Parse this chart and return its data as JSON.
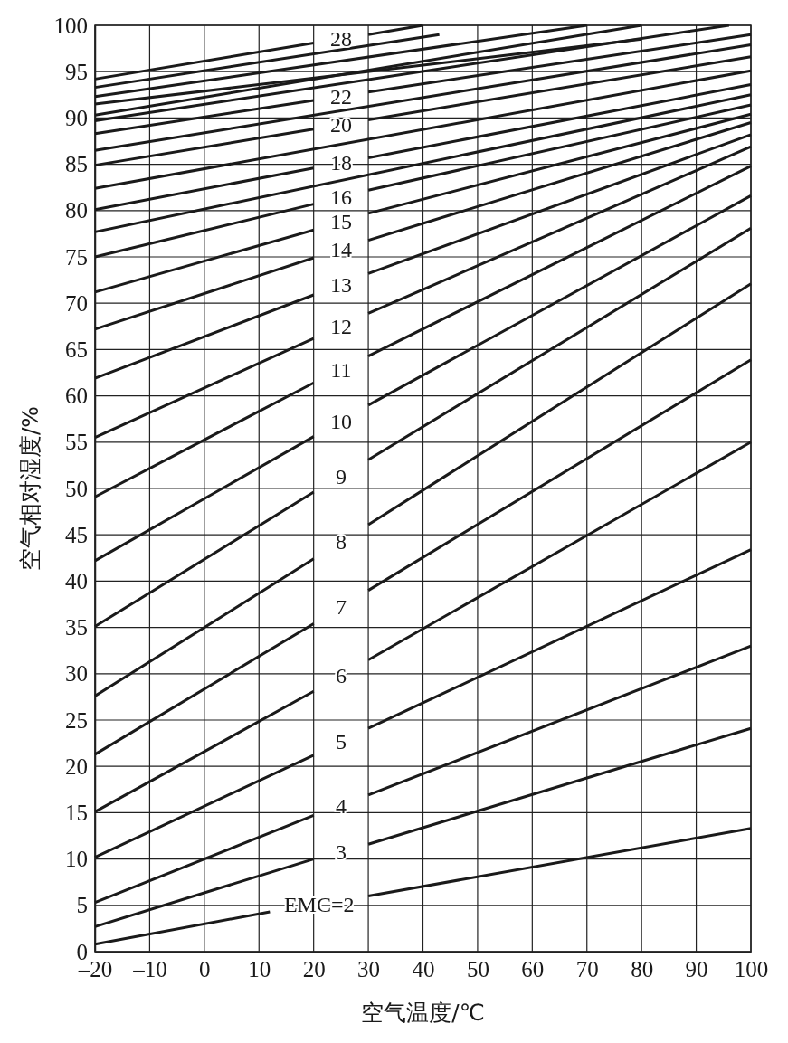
{
  "chart_data": {
    "type": "line",
    "xlabel": "空气温度/℃",
    "ylabel": "空气相对湿度/%",
    "xlim": [
      -20,
      100
    ],
    "ylim": [
      0,
      100
    ],
    "xticks": [
      {
        "value": -20,
        "label": "–20"
      },
      {
        "value": -10,
        "label": "–10"
      },
      0,
      10,
      20,
      30,
      40,
      50,
      60,
      70,
      80,
      90,
      100
    ],
    "yticks": [
      0,
      5,
      10,
      15,
      20,
      25,
      30,
      35,
      40,
      45,
      50,
      55,
      60,
      65,
      70,
      75,
      80,
      85,
      90,
      95,
      100
    ],
    "grid": true,
    "marker": "none",
    "line_style": "solid",
    "series": [
      {
        "name": "EMC=2",
        "color": "#1a1a1a",
        "x": [
          -20,
          12,
          21,
          30,
          100
        ],
        "values": [
          0.8,
          4.3,
          null,
          6.0,
          13.3
        ]
      },
      {
        "name": "3",
        "color": "#1a1a1a",
        "x": [
          -20,
          20,
          25,
          30,
          100
        ],
        "values": [
          2.7,
          10.0,
          null,
          11.6,
          24.1
        ]
      },
      {
        "name": "4",
        "color": "#1a1a1a",
        "x": [
          -20,
          20,
          25,
          30,
          100
        ],
        "values": [
          5.3,
          14.7,
          null,
          16.9,
          33.0
        ]
      },
      {
        "name": "5",
        "color": "#1a1a1a",
        "x": [
          -20,
          20,
          25,
          30,
          100
        ],
        "values": [
          10.2,
          21.2,
          null,
          24.1,
          43.4
        ]
      },
      {
        "name": "6",
        "color": "#1a1a1a",
        "x": [
          -20,
          20,
          25,
          30,
          100
        ],
        "values": [
          15.1,
          28.1,
          null,
          31.5,
          55.0
        ]
      },
      {
        "name": "7",
        "color": "#1a1a1a",
        "x": [
          -20,
          20,
          25,
          30,
          100
        ],
        "values": [
          21.3,
          35.4,
          null,
          39.0,
          63.9
        ]
      },
      {
        "name": "8",
        "color": "#1a1a1a",
        "x": [
          -20,
          20,
          25,
          30,
          100
        ],
        "values": [
          27.6,
          42.4,
          null,
          46.1,
          72.1
        ]
      },
      {
        "name": "9",
        "color": "#1a1a1a",
        "x": [
          -20,
          20,
          25,
          30,
          100
        ],
        "values": [
          35.1,
          49.6,
          null,
          53.1,
          78.1
        ]
      },
      {
        "name": "10",
        "color": "#1a1a1a",
        "x": [
          -20,
          20,
          25,
          30,
          100
        ],
        "values": [
          42.2,
          55.6,
          null,
          59.0,
          81.6
        ]
      },
      {
        "name": "11",
        "color": "#1a1a1a",
        "x": [
          -20,
          20,
          25,
          30,
          100
        ],
        "values": [
          49.1,
          61.4,
          null,
          64.3,
          84.8
        ]
      },
      {
        "name": "12",
        "color": "#1a1a1a",
        "x": [
          -20,
          20,
          25,
          30,
          100
        ],
        "values": [
          55.5,
          66.2,
          null,
          68.9,
          86.9
        ]
      },
      {
        "name": "13",
        "color": "#1a1a1a",
        "x": [
          -20,
          20,
          25,
          30,
          100
        ],
        "values": [
          61.9,
          70.9,
          null,
          73.2,
          88.2
        ]
      },
      {
        "name": "14",
        "color": "#1a1a1a",
        "x": [
          -20,
          20,
          25,
          30,
          100
        ],
        "values": [
          67.2,
          74.9,
          null,
          76.8,
          89.5
        ]
      },
      {
        "name": "15",
        "color": "#1a1a1a",
        "x": [
          -20,
          20,
          25,
          30,
          100
        ],
        "values": [
          71.2,
          77.9,
          null,
          79.7,
          90.4
        ]
      },
      {
        "name": "16",
        "color": "#1a1a1a",
        "x": [
          -20,
          20,
          25,
          30,
          100
        ],
        "values": [
          75.0,
          80.7,
          null,
          82.2,
          91.4
        ]
      },
      {
        "color": "#1a1a1a",
        "x": [
          -20,
          100
        ],
        "values": [
          77.7,
          92.5
        ]
      },
      {
        "name": "18",
        "color": "#1a1a1a",
        "x": [
          -20,
          20,
          25,
          30,
          100
        ],
        "values": [
          80.1,
          84.6,
          null,
          85.7,
          93.6
        ]
      },
      {
        "color": "#1a1a1a",
        "x": [
          -20,
          100
        ],
        "values": [
          82.4,
          95.1
        ]
      },
      {
        "name": "20",
        "color": "#1a1a1a",
        "x": [
          -20,
          20,
          25,
          30,
          100
        ],
        "values": [
          84.9,
          88.8,
          null,
          89.8,
          96.6
        ]
      },
      {
        "color": "#1a1a1a",
        "x": [
          -20,
          100
        ],
        "values": [
          86.5,
          97.9
        ]
      },
      {
        "name": "22",
        "color": "#1a1a1a",
        "x": [
          -20,
          20,
          25,
          30,
          100
        ],
        "values": [
          88.3,
          91.9,
          null,
          92.8,
          99.0
        ]
      },
      {
        "color": "#1a1a1a",
        "x": [
          -20,
          96
        ],
        "values": [
          89.7,
          100
        ]
      },
      {
        "color": "#1a1a1a",
        "x": [
          -20,
          80
        ],
        "values": [
          90.3,
          100
        ]
      },
      {
        "color": "#1a1a1a",
        "x": [
          -20,
          80
        ],
        "values": [
          91.5,
          98.5
        ]
      },
      {
        "color": "#1a1a1a",
        "x": [
          -20,
          70
        ],
        "values": [
          92.3,
          100
        ]
      },
      {
        "color": "#1a1a1a",
        "x": [
          -20,
          43
        ],
        "values": [
          93.3,
          99.0
        ]
      },
      {
        "name": "28",
        "color": "#1a1a1a",
        "x": [
          -20,
          20,
          25,
          30,
          40
        ],
        "values": [
          94.2,
          98.1,
          null,
          99.0,
          100
        ]
      }
    ]
  }
}
